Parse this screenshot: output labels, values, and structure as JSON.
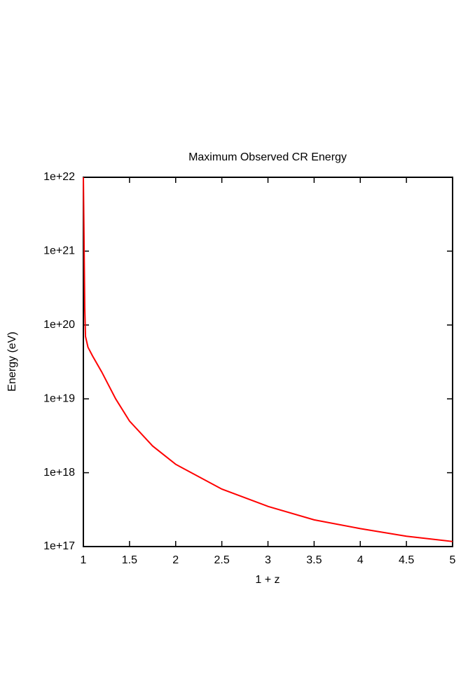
{
  "chart_data": {
    "type": "line",
    "title": "Maximum Observed CR Energy",
    "x_label": "1 + z",
    "y_label": "Energy (eV)",
    "x": [
      1.0,
      1.008,
      1.015,
      1.023,
      1.05,
      1.1,
      1.2,
      1.35,
      1.5,
      1.75,
      2,
      2.5,
      3,
      3.5,
      4,
      4.5,
      5
    ],
    "values": [
      1e+22,
      1.2e+21,
      1.7e+20,
      7e+19,
      5e+19,
      3.8e+19,
      2.3e+19,
      1e+19,
      5e+18,
      2.3e+18,
      1.3e+18,
      6e+17,
      3.5e+17,
      2.3e+17,
      1.75e+17,
      1.38e+17,
      1.17e+17
    ],
    "color": "#ff0000",
    "xlim": [
      1,
      5
    ],
    "xticks": [
      1,
      1.5,
      2,
      2.5,
      3,
      3.5,
      4,
      4.5,
      5
    ],
    "ylim": [
      1e+17,
      1e+22
    ],
    "y_scale": "log",
    "yticks": [
      {
        "value": 1e+17,
        "label": "1e+17"
      },
      {
        "value": 1e+18,
        "label": "1e+18"
      },
      {
        "value": 1e+19,
        "label": "1e+19"
      },
      {
        "value": 1e+20,
        "label": "1e+20"
      },
      {
        "value": 1e+21,
        "label": "1e+21"
      },
      {
        "value": 1e+22,
        "label": "1e+22"
      }
    ],
    "grid": false
  }
}
